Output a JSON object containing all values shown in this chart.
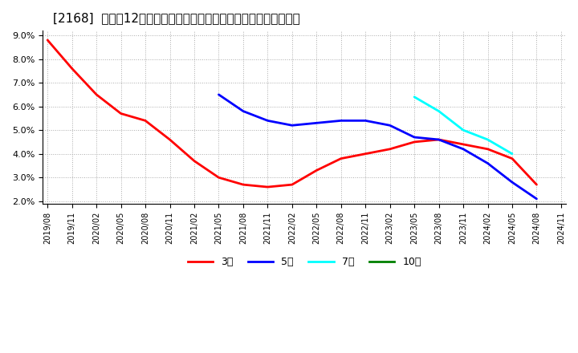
{
  "title": "[2168]  売上高12か月移動合計の対前年同期増減率の平均値の推移",
  "title_fontsize": 11,
  "ylim": [
    0.019,
    0.092
  ],
  "yticks": [
    0.02,
    0.03,
    0.04,
    0.05,
    0.06,
    0.07,
    0.08,
    0.09
  ],
  "background_color": "#ffffff",
  "plot_bg_color": "#ffffff",
  "grid_color": "#aaaaaa",
  "series": {
    "3年": {
      "color": "#ff0000",
      "linewidth": 2.0,
      "data": [
        [
          "2019/08",
          0.088
        ],
        [
          "2019/11",
          0.076
        ],
        [
          "2020/02",
          0.065
        ],
        [
          "2020/05",
          0.057
        ],
        [
          "2020/08",
          0.054
        ],
        [
          "2020/11",
          0.046
        ],
        [
          "2021/02",
          0.037
        ],
        [
          "2021/05",
          0.03
        ],
        [
          "2021/08",
          0.027
        ],
        [
          "2021/11",
          0.026
        ],
        [
          "2022/02",
          0.027
        ],
        [
          "2022/05",
          0.033
        ],
        [
          "2022/08",
          0.038
        ],
        [
          "2022/11",
          0.04
        ],
        [
          "2023/02",
          0.042
        ],
        [
          "2023/05",
          0.045
        ],
        [
          "2023/08",
          0.046
        ],
        [
          "2023/11",
          0.044
        ],
        [
          "2024/02",
          0.042
        ],
        [
          "2024/05",
          0.038
        ],
        [
          "2024/08",
          0.027
        ]
      ]
    },
    "5年": {
      "color": "#0000ff",
      "linewidth": 2.0,
      "data": [
        [
          "2021/05",
          0.065
        ],
        [
          "2021/08",
          0.058
        ],
        [
          "2021/11",
          0.054
        ],
        [
          "2022/02",
          0.052
        ],
        [
          "2022/05",
          0.053
        ],
        [
          "2022/08",
          0.054
        ],
        [
          "2022/11",
          0.054
        ],
        [
          "2023/02",
          0.052
        ],
        [
          "2023/05",
          0.047
        ],
        [
          "2023/08",
          0.046
        ],
        [
          "2023/11",
          0.042
        ],
        [
          "2024/02",
          0.036
        ],
        [
          "2024/05",
          0.028
        ],
        [
          "2024/08",
          0.021
        ]
      ]
    },
    "7年": {
      "color": "#00ffff",
      "linewidth": 2.0,
      "data": [
        [
          "2023/05",
          0.064
        ],
        [
          "2023/08",
          0.058
        ],
        [
          "2023/11",
          0.05
        ],
        [
          "2024/02",
          0.046
        ],
        [
          "2024/05",
          0.04
        ]
      ]
    },
    "10年": {
      "color": "#008000",
      "linewidth": 2.0,
      "data": []
    }
  },
  "xtick_labels": [
    "2019/08",
    "2019/11",
    "2020/02",
    "2020/05",
    "2020/08",
    "2020/11",
    "2021/02",
    "2021/05",
    "2021/08",
    "2021/11",
    "2022/02",
    "2022/05",
    "2022/08",
    "2022/11",
    "2023/02",
    "2023/05",
    "2023/08",
    "2023/11",
    "2024/02",
    "2024/05",
    "2024/08",
    "2024/11"
  ],
  "legend_entries": [
    "3年",
    "5年",
    "7年",
    "10年"
  ],
  "legend_colors": [
    "#ff0000",
    "#0000ff",
    "#00ffff",
    "#008000"
  ]
}
